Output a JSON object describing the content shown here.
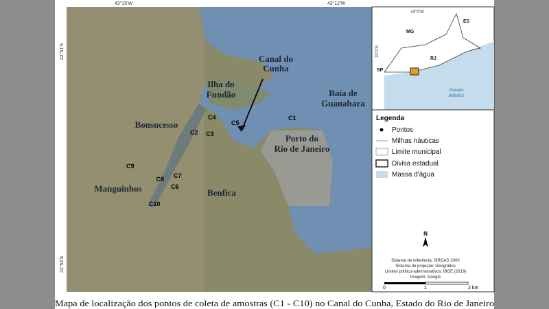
{
  "map": {
    "coordinates": {
      "top": [
        "43°15'W",
        "43°12'W"
      ],
      "left": [
        "22°51'S",
        "22°54'S"
      ]
    },
    "place_labels": [
      [
        "Canal do",
        "Cunha"
      ],
      [
        "Ilha do",
        "Fundão"
      ],
      [
        "Baía de",
        "Guanabara"
      ],
      [
        "Bonsucesso"
      ],
      [
        "Porto do",
        "Rio de Janeiro"
      ],
      [
        "Manguinhos"
      ],
      [
        "Benfica"
      ]
    ],
    "points": [
      "C1",
      "C2",
      "C3",
      "C4",
      "C5",
      "C6",
      "C7",
      "C8",
      "C9",
      "C10"
    ]
  },
  "inset": {
    "coordinates": {
      "top": "43°0'W",
      "left": "22°0'S"
    },
    "labels": [
      [
        "MG"
      ],
      [
        "ES"
      ],
      [
        "RJ"
      ],
      [
        "SP"
      ],
      [
        "Oceano",
        "Atlântico"
      ]
    ]
  },
  "legend": {
    "title": "Legenda",
    "items": [
      "Pontos",
      "Milhas náuticas",
      "Limite municipal",
      "Divisa estadual",
      "Massa d'água"
    ]
  },
  "north": "N",
  "notes": [
    "Sistema de referência: SIRGAS 2000",
    "Sistema de projeção: Geográfico",
    "Limites político-administrativos: IBGE (2019)",
    "Imagem: Google"
  ],
  "scale": [
    "0",
    "1",
    "2 km"
  ],
  "caption": "Mapa de localização dos pontos de coleta de amostras (C1 - C10) no Canal do Cunha, Estado do Rio de Janeiro"
}
